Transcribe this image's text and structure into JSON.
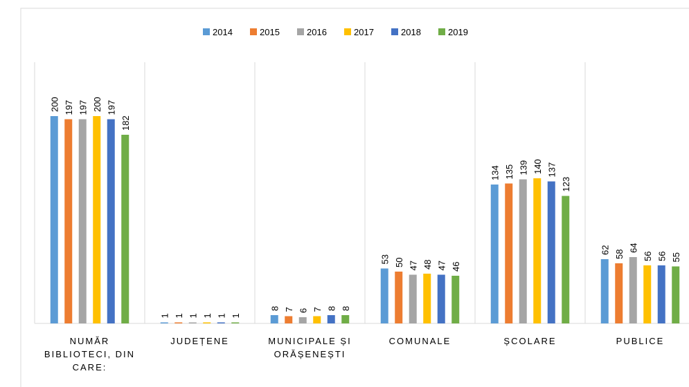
{
  "chart_data": {
    "type": "bar",
    "categories": [
      "NUMĂR BIBLIOTECI, DIN CARE:",
      "JUDEȚENE",
      "MUNICIPALE ȘI ORĂȘENEȘTI",
      "COMUNALE",
      "ȘCOLARE",
      "PUBLICE"
    ],
    "series": [
      {
        "name": "2014",
        "color": "#5b9bd5",
        "values": [
          200,
          1,
          8,
          53,
          134,
          62
        ]
      },
      {
        "name": "2015",
        "color": "#ed7d31",
        "values": [
          197,
          1,
          7,
          50,
          135,
          58
        ]
      },
      {
        "name": "2016",
        "color": "#a5a5a5",
        "values": [
          197,
          1,
          6,
          47,
          139,
          64
        ]
      },
      {
        "name": "2017",
        "color": "#ffc000",
        "values": [
          200,
          1,
          7,
          48,
          140,
          56
        ]
      },
      {
        "name": "2018",
        "color": "#4472c4",
        "values": [
          197,
          1,
          8,
          47,
          137,
          56
        ]
      },
      {
        "name": "2019",
        "color": "#70ad47",
        "values": [
          182,
          1,
          8,
          46,
          123,
          55
        ]
      }
    ],
    "legend": "top"
  }
}
